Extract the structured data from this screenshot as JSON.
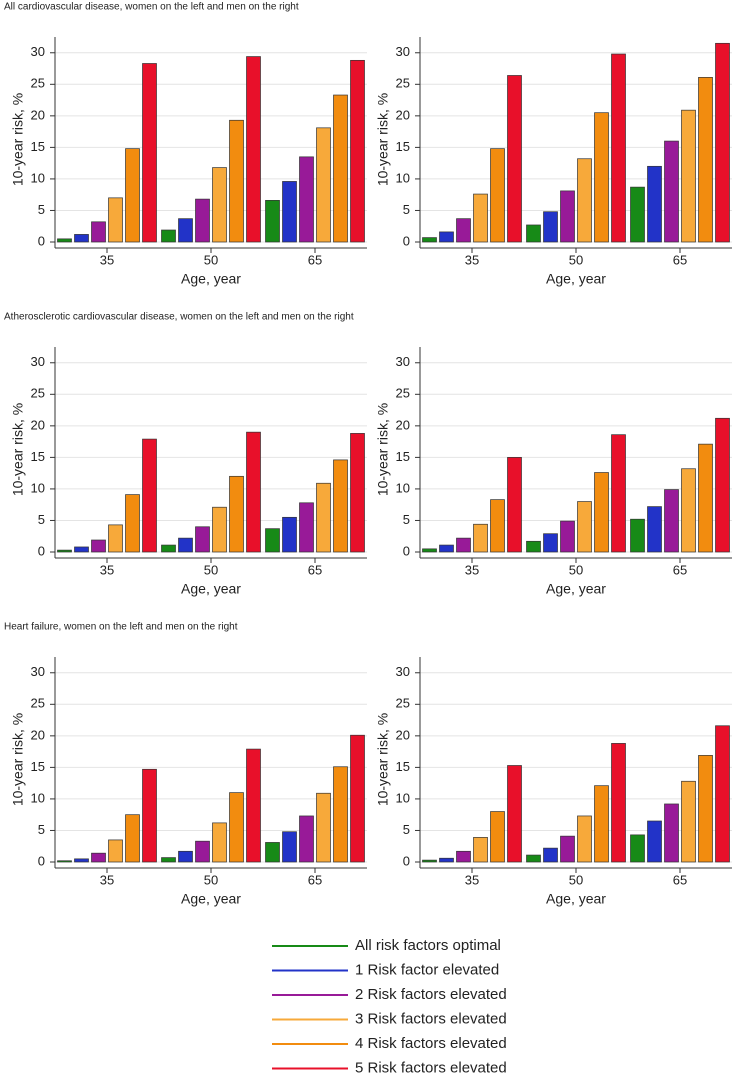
{
  "chart_data": [
    {
      "type": "bar",
      "title": "All cardiovascular disease, women on the left and men on the right",
      "xlabel": "Age, year",
      "ylabel": "10-year risk, %",
      "categories": [
        "35",
        "50",
        "65"
      ],
      "ylim": [
        0,
        32.5
      ],
      "yticks": [
        0,
        5,
        10,
        15,
        20,
        25,
        30
      ],
      "grid": true,
      "series": [
        {
          "values": [
            0.5,
            1.9,
            6.6
          ]
        },
        {
          "values": [
            1.2,
            3.7,
            9.6
          ]
        },
        {
          "values": [
            3.2,
            6.8,
            13.5
          ]
        },
        {
          "values": [
            7.0,
            11.8,
            18.1
          ]
        },
        {
          "values": [
            14.8,
            19.3,
            23.3
          ]
        },
        {
          "values": [
            28.3,
            29.4,
            28.8
          ]
        }
      ]
    },
    {
      "type": "bar",
      "xlabel": "Age, year",
      "ylabel": "10-year risk, %",
      "categories": [
        "35",
        "50",
        "65"
      ],
      "ylim": [
        0,
        32.5
      ],
      "yticks": [
        0,
        5,
        10,
        15,
        20,
        25,
        30
      ],
      "grid": true,
      "series": [
        {
          "values": [
            0.7,
            2.7,
            8.7
          ]
        },
        {
          "values": [
            1.6,
            4.8,
            12.0
          ]
        },
        {
          "values": [
            3.7,
            8.1,
            16.0
          ]
        },
        {
          "values": [
            7.6,
            13.2,
            20.9
          ]
        },
        {
          "values": [
            14.8,
            20.5,
            26.1
          ]
        },
        {
          "values": [
            26.4,
            29.8,
            31.5
          ]
        }
      ]
    },
    {
      "type": "bar",
      "title": "Atherosclerotic cardiovascular disease, women on the left and men on the right",
      "xlabel": "Age, year",
      "ylabel": "10-year risk, %",
      "categories": [
        "35",
        "50",
        "65"
      ],
      "ylim": [
        0,
        32.5
      ],
      "yticks": [
        0,
        5,
        10,
        15,
        20,
        25,
        30
      ],
      "grid": true,
      "series": [
        {
          "values": [
            0.3,
            1.1,
            3.7
          ]
        },
        {
          "values": [
            0.8,
            2.2,
            5.5
          ]
        },
        {
          "values": [
            1.9,
            4.0,
            7.8
          ]
        },
        {
          "values": [
            4.3,
            7.1,
            10.9
          ]
        },
        {
          "values": [
            9.1,
            12.0,
            14.6
          ]
        },
        {
          "values": [
            17.9,
            19.0,
            18.8
          ]
        }
      ]
    },
    {
      "type": "bar",
      "xlabel": "Age, year",
      "ylabel": "10-year risk, %",
      "categories": [
        "35",
        "50",
        "65"
      ],
      "ylim": [
        0,
        32.5
      ],
      "yticks": [
        0,
        5,
        10,
        15,
        20,
        25,
        30
      ],
      "grid": true,
      "series": [
        {
          "values": [
            0.5,
            1.7,
            5.2
          ]
        },
        {
          "values": [
            1.1,
            2.9,
            7.2
          ]
        },
        {
          "values": [
            2.2,
            4.9,
            9.9
          ]
        },
        {
          "values": [
            4.4,
            8.0,
            13.2
          ]
        },
        {
          "values": [
            8.3,
            12.6,
            17.1
          ]
        },
        {
          "values": [
            15.0,
            18.6,
            21.2
          ]
        }
      ]
    },
    {
      "type": "bar",
      "title": "Heart failure, women on the left and men on the right",
      "xlabel": "Age, year",
      "ylabel": "10-year risk, %",
      "categories": [
        "35",
        "50",
        "65"
      ],
      "ylim": [
        0,
        32.5
      ],
      "yticks": [
        0,
        5,
        10,
        15,
        20,
        25,
        30
      ],
      "grid": true,
      "series": [
        {
          "values": [
            0.2,
            0.7,
            3.1
          ]
        },
        {
          "values": [
            0.5,
            1.7,
            4.8
          ]
        },
        {
          "values": [
            1.4,
            3.3,
            7.3
          ]
        },
        {
          "values": [
            3.5,
            6.2,
            10.9
          ]
        },
        {
          "values": [
            7.5,
            11.0,
            15.1
          ]
        },
        {
          "values": [
            14.7,
            17.9,
            20.1
          ]
        }
      ]
    },
    {
      "type": "bar",
      "xlabel": "Age, year",
      "ylabel": "10-year risk, %",
      "categories": [
        "35",
        "50",
        "65"
      ],
      "ylim": [
        0,
        32.5
      ],
      "yticks": [
        0,
        5,
        10,
        15,
        20,
        25,
        30
      ],
      "grid": true,
      "series": [
        {
          "values": [
            0.3,
            1.1,
            4.3
          ]
        },
        {
          "values": [
            0.6,
            2.2,
            6.5
          ]
        },
        {
          "values": [
            1.7,
            4.1,
            9.2
          ]
        },
        {
          "values": [
            3.9,
            7.3,
            12.8
          ]
        },
        {
          "values": [
            8.0,
            12.1,
            16.9
          ]
        },
        {
          "values": [
            15.3,
            18.8,
            21.6
          ]
        }
      ]
    }
  ],
  "legend": {
    "series": [
      {
        "name": "All risk factors optimal",
        "color": "#178a17"
      },
      {
        "name": "1 Risk factor elevated",
        "color": "#2233c8"
      },
      {
        "name": "2 Risk factors elevated",
        "color": "#981a98"
      },
      {
        "name": "3 Risk factors elevated",
        "color": "#f7a93a"
      },
      {
        "name": "4 Risk factors elevated",
        "color": "#f28c0f"
      },
      {
        "name": "5 Risk factors elevated",
        "color": "#e8102a"
      }
    ]
  }
}
